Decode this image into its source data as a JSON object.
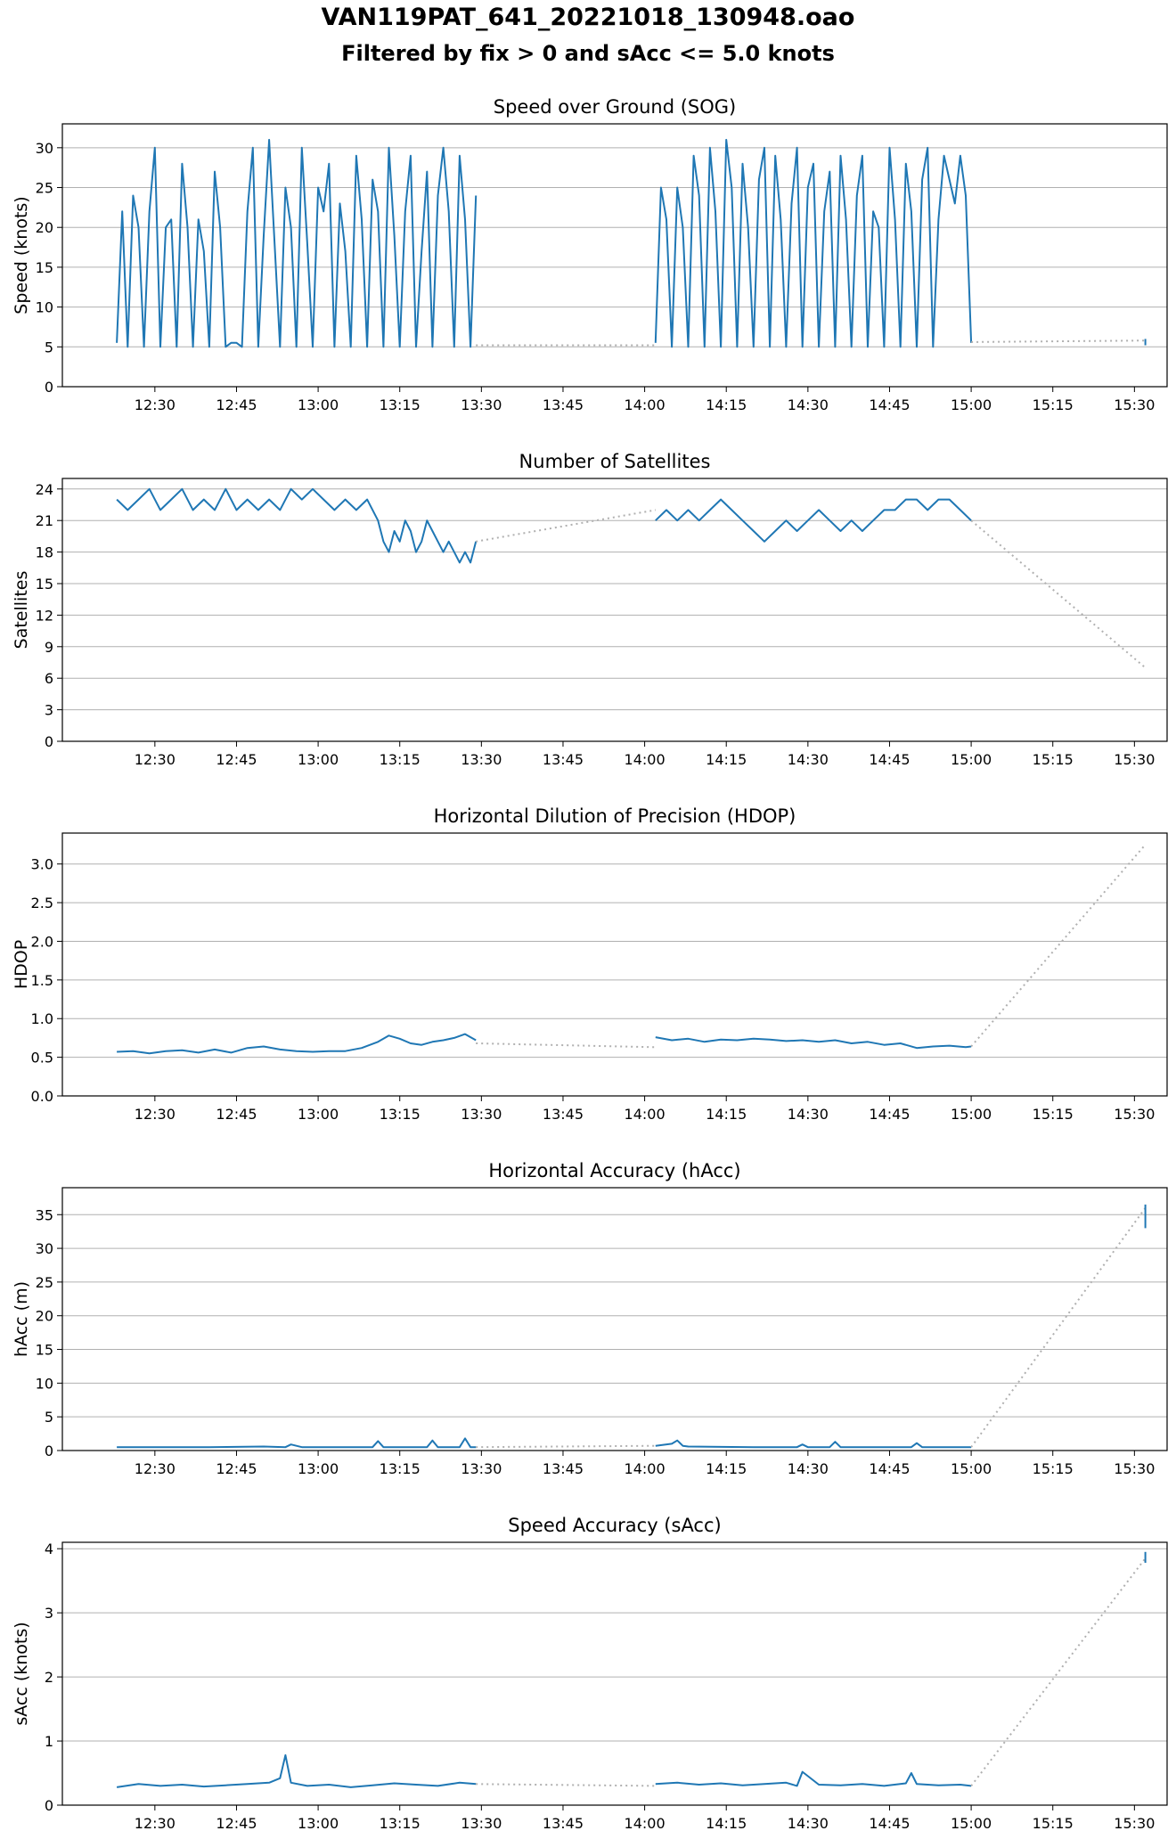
{
  "header": {
    "title": "VAN119PAT_641_20221018_130948.oao",
    "subtitle": "Filtered by fix > 0 and sAcc <= 5.0 knots"
  },
  "colors": {
    "series": "#1f77b4",
    "gap": "#b0b0b0",
    "grid": "#b0b0b0",
    "axis": "#000000"
  },
  "chart_data": [
    {
      "type": "line",
      "title": "Speed over Ground (SOG)",
      "ylabel": "Speed (knots)",
      "xlabel": "",
      "x_unit": "clock time (hh:mm)",
      "xlim": [
        "12:13",
        "15:36"
      ],
      "ylim": [
        0,
        33
      ],
      "x_ticks": [
        "12:30",
        "12:45",
        "13:00",
        "13:15",
        "13:30",
        "13:45",
        "14:00",
        "14:15",
        "14:30",
        "14:45",
        "15:00",
        "15:15",
        "15:30"
      ],
      "y_ticks": [
        "0",
        "5",
        "10",
        "15",
        "20",
        "25",
        "30"
      ],
      "grid": "y",
      "series": [
        {
          "style": "solid",
          "x": [
            "12:23",
            "12:24",
            "12:25",
            "12:26",
            "12:27",
            "12:28",
            "12:29",
            "12:30",
            "12:31",
            "12:32",
            "12:33",
            "12:34",
            "12:35",
            "12:36",
            "12:37",
            "12:38",
            "12:39",
            "12:40",
            "12:41",
            "12:42",
            "12:43",
            "12:44",
            "12:45",
            "12:46",
            "12:47",
            "12:48",
            "12:49",
            "12:50",
            "12:51",
            "12:52",
            "12:53",
            "12:54",
            "12:55",
            "12:56",
            "12:57",
            "12:58",
            "12:59",
            "13:00",
            "13:01",
            "13:02",
            "13:03",
            "13:04",
            "13:05",
            "13:06",
            "13:07",
            "13:08",
            "13:09",
            "13:10",
            "13:11",
            "13:12",
            "13:13",
            "13:14",
            "13:15",
            "13:16",
            "13:17",
            "13:18",
            "13:19",
            "13:20",
            "13:21",
            "13:22",
            "13:23",
            "13:24",
            "13:25",
            "13:26",
            "13:27",
            "13:28",
            "13:29"
          ],
          "y": [
            5.5,
            22,
            5,
            24,
            20,
            5,
            22,
            30,
            5,
            20,
            21,
            5,
            28,
            20,
            5,
            21,
            17,
            5,
            27,
            20,
            5,
            5.5,
            5.5,
            5,
            22,
            30,
            5,
            19,
            31,
            18,
            5,
            25,
            20,
            5,
            30,
            18,
            5,
            25,
            22,
            28,
            5,
            23,
            17,
            5,
            29,
            21,
            5,
            26,
            22,
            5,
            30,
            19,
            5,
            22,
            29,
            5,
            17,
            27,
            5,
            24,
            30,
            22,
            5,
            29,
            21,
            5,
            24
          ]
        },
        {
          "style": "dotted",
          "x": [
            "13:29",
            "14:02"
          ],
          "y": [
            5.2,
            5.2
          ]
        },
        {
          "style": "solid",
          "x": [
            "14:02",
            "14:03",
            "14:04",
            "14:05",
            "14:06",
            "14:07",
            "14:08",
            "14:09",
            "14:10",
            "14:11",
            "14:12",
            "14:13",
            "14:14",
            "14:15",
            "14:16",
            "14:17",
            "14:18",
            "14:19",
            "14:20",
            "14:21",
            "14:22",
            "14:23",
            "14:24",
            "14:25",
            "14:26",
            "14:27",
            "14:28",
            "14:29",
            "14:30",
            "14:31",
            "14:32",
            "14:33",
            "14:34",
            "14:35",
            "14:36",
            "14:37",
            "14:38",
            "14:39",
            "14:40",
            "14:41",
            "14:42",
            "14:43",
            "14:44",
            "14:45",
            "14:46",
            "14:47",
            "14:48",
            "14:49",
            "14:50",
            "14:51",
            "14:52",
            "14:53",
            "14:54",
            "14:55",
            "14:56",
            "14:57",
            "14:58",
            "14:59",
            "15:00"
          ],
          "y": [
            5.5,
            25,
            21,
            5,
            25,
            20,
            5,
            29,
            24,
            5,
            30,
            22,
            5,
            31,
            25,
            5,
            28,
            20,
            5,
            26,
            30,
            5,
            29,
            21,
            5,
            23,
            30,
            5,
            25,
            28,
            5,
            22,
            27,
            5,
            29,
            21,
            5,
            24,
            29,
            5,
            22,
            20,
            5,
            30,
            21,
            5,
            28,
            22,
            5,
            26,
            30,
            5,
            21,
            29,
            26,
            23,
            29,
            24,
            5.5
          ]
        },
        {
          "style": "dotted",
          "x": [
            "15:00",
            "15:32"
          ],
          "y": [
            5.6,
            5.8
          ]
        },
        {
          "style": "solid",
          "x": [
            "15:32",
            "15:32"
          ],
          "y": [
            5.2,
            6.0
          ]
        }
      ]
    },
    {
      "type": "line",
      "title": "Number of Satellites",
      "ylabel": "Satellites",
      "xlabel": "",
      "x_unit": "clock time (hh:mm)",
      "xlim": [
        "12:13",
        "15:36"
      ],
      "ylim": [
        0,
        25
      ],
      "x_ticks": [
        "12:30",
        "12:45",
        "13:00",
        "13:15",
        "13:30",
        "13:45",
        "14:00",
        "14:15",
        "14:30",
        "14:45",
        "15:00",
        "15:15",
        "15:30"
      ],
      "y_ticks": [
        "0",
        "3",
        "6",
        "9",
        "12",
        "15",
        "18",
        "21",
        "24"
      ],
      "grid": "y",
      "series": [
        {
          "style": "solid",
          "x": [
            "12:23",
            "12:25",
            "12:27",
            "12:29",
            "12:31",
            "12:33",
            "12:35",
            "12:37",
            "12:39",
            "12:41",
            "12:43",
            "12:45",
            "12:47",
            "12:49",
            "12:51",
            "12:53",
            "12:55",
            "12:57",
            "12:59",
            "13:01",
            "13:03",
            "13:05",
            "13:07",
            "13:09",
            "13:11",
            "13:12",
            "13:13",
            "13:14",
            "13:15",
            "13:16",
            "13:17",
            "13:18",
            "13:19",
            "13:20",
            "13:21",
            "13:22",
            "13:23",
            "13:24",
            "13:25",
            "13:26",
            "13:27",
            "13:28",
            "13:29"
          ],
          "y": [
            23,
            22,
            23,
            24,
            22,
            23,
            24,
            22,
            23,
            22,
            24,
            22,
            23,
            22,
            23,
            22,
            24,
            23,
            24,
            23,
            22,
            23,
            22,
            23,
            21,
            19,
            18,
            20,
            19,
            21,
            20,
            18,
            19,
            21,
            20,
            19,
            18,
            19,
            18,
            17,
            18,
            17,
            19
          ]
        },
        {
          "style": "dotted",
          "x": [
            "13:29",
            "14:02"
          ],
          "y": [
            19,
            22
          ]
        },
        {
          "style": "solid",
          "x": [
            "14:02",
            "14:04",
            "14:06",
            "14:08",
            "14:10",
            "14:12",
            "14:14",
            "14:16",
            "14:18",
            "14:20",
            "14:22",
            "14:24",
            "14:26",
            "14:28",
            "14:30",
            "14:32",
            "14:34",
            "14:36",
            "14:38",
            "14:40",
            "14:42",
            "14:44",
            "14:46",
            "14:48",
            "14:50",
            "14:52",
            "14:54",
            "14:56",
            "14:58",
            "15:00"
          ],
          "y": [
            21,
            22,
            21,
            22,
            21,
            22,
            23,
            22,
            21,
            20,
            19,
            20,
            21,
            20,
            21,
            22,
            21,
            20,
            21,
            20,
            21,
            22,
            22,
            23,
            23,
            22,
            23,
            23,
            22,
            21
          ]
        },
        {
          "style": "dotted",
          "x": [
            "15:00",
            "15:32"
          ],
          "y": [
            21,
            7
          ]
        }
      ]
    },
    {
      "type": "line",
      "title": "Horizontal Dilution of Precision (HDOP)",
      "ylabel": "HDOP",
      "xlabel": "",
      "x_unit": "clock time (hh:mm)",
      "xlim": [
        "12:13",
        "15:36"
      ],
      "ylim": [
        0,
        3.4
      ],
      "x_ticks": [
        "12:30",
        "12:45",
        "13:00",
        "13:15",
        "13:30",
        "13:45",
        "14:00",
        "14:15",
        "14:30",
        "14:45",
        "15:00",
        "15:15",
        "15:30"
      ],
      "y_ticks": [
        "0.0",
        "0.5",
        "1.0",
        "1.5",
        "2.0",
        "2.5",
        "3.0"
      ],
      "grid": "y",
      "series": [
        {
          "style": "solid",
          "x": [
            "12:23",
            "12:26",
            "12:29",
            "12:32",
            "12:35",
            "12:38",
            "12:41",
            "12:44",
            "12:47",
            "12:50",
            "12:53",
            "12:56",
            "12:59",
            "13:02",
            "13:05",
            "13:08",
            "13:11",
            "13:13",
            "13:15",
            "13:17",
            "13:19",
            "13:21",
            "13:23",
            "13:25",
            "13:27",
            "13:29"
          ],
          "y": [
            0.57,
            0.58,
            0.55,
            0.58,
            0.59,
            0.56,
            0.6,
            0.56,
            0.62,
            0.64,
            0.6,
            0.58,
            0.57,
            0.58,
            0.58,
            0.62,
            0.7,
            0.78,
            0.74,
            0.68,
            0.66,
            0.7,
            0.72,
            0.75,
            0.8,
            0.72
          ]
        },
        {
          "style": "dotted",
          "x": [
            "13:29",
            "14:02"
          ],
          "y": [
            0.68,
            0.63
          ]
        },
        {
          "style": "solid",
          "x": [
            "14:02",
            "14:05",
            "14:08",
            "14:11",
            "14:14",
            "14:17",
            "14:20",
            "14:23",
            "14:26",
            "14:29",
            "14:32",
            "14:35",
            "14:38",
            "14:41",
            "14:44",
            "14:47",
            "14:50",
            "14:53",
            "14:56",
            "14:59",
            "15:00"
          ],
          "y": [
            0.76,
            0.72,
            0.74,
            0.7,
            0.73,
            0.72,
            0.74,
            0.73,
            0.71,
            0.72,
            0.7,
            0.72,
            0.68,
            0.7,
            0.66,
            0.68,
            0.62,
            0.64,
            0.65,
            0.63,
            0.64
          ]
        },
        {
          "style": "dotted",
          "x": [
            "15:00",
            "15:32"
          ],
          "y": [
            0.64,
            3.25
          ]
        }
      ]
    },
    {
      "type": "line",
      "title": "Horizontal Accuracy (hAcc)",
      "ylabel": "hAcc (m)",
      "xlabel": "",
      "x_unit": "clock time (hh:mm)",
      "xlim": [
        "12:13",
        "15:36"
      ],
      "ylim": [
        0,
        39
      ],
      "x_ticks": [
        "12:30",
        "12:45",
        "13:00",
        "13:15",
        "13:30",
        "13:45",
        "14:00",
        "14:15",
        "14:30",
        "14:45",
        "15:00",
        "15:15",
        "15:30"
      ],
      "y_ticks": [
        "0",
        "5",
        "10",
        "15",
        "20",
        "25",
        "30",
        "35"
      ],
      "grid": "y",
      "series": [
        {
          "style": "solid",
          "x": [
            "12:23",
            "12:30",
            "12:40",
            "12:50",
            "12:54",
            "12:55",
            "12:57",
            "13:05",
            "13:10",
            "13:11",
            "13:12",
            "13:20",
            "13:21",
            "13:22",
            "13:26",
            "13:27",
            "13:28",
            "13:29"
          ],
          "y": [
            0.5,
            0.5,
            0.5,
            0.6,
            0.5,
            0.9,
            0.5,
            0.5,
            0.5,
            1.4,
            0.5,
            0.5,
            1.5,
            0.5,
            0.5,
            1.8,
            0.5,
            0.5
          ]
        },
        {
          "style": "dotted",
          "x": [
            "13:29",
            "14:02"
          ],
          "y": [
            0.5,
            0.7
          ]
        },
        {
          "style": "solid",
          "x": [
            "14:02",
            "14:05",
            "14:06",
            "14:07",
            "14:08",
            "14:20",
            "14:28",
            "14:29",
            "14:30",
            "14:34",
            "14:35",
            "14:36",
            "14:45",
            "14:49",
            "14:50",
            "14:51",
            "15:00"
          ],
          "y": [
            0.7,
            1.0,
            1.5,
            0.7,
            0.6,
            0.5,
            0.5,
            0.9,
            0.5,
            0.5,
            1.3,
            0.5,
            0.5,
            0.5,
            1.1,
            0.5,
            0.5
          ]
        },
        {
          "style": "dotted",
          "x": [
            "15:00",
            "15:32"
          ],
          "y": [
            0.5,
            36
          ]
        },
        {
          "style": "solid",
          "x": [
            "15:32",
            "15:32"
          ],
          "y": [
            33,
            36.5
          ]
        }
      ]
    },
    {
      "type": "line",
      "title": "Speed Accuracy (sAcc)",
      "ylabel": "sAcc (knots)",
      "xlabel": "",
      "x_unit": "clock time (hh:mm)",
      "xlim": [
        "12:13",
        "15:36"
      ],
      "ylim": [
        0,
        4.1
      ],
      "x_ticks": [
        "12:30",
        "12:45",
        "13:00",
        "13:15",
        "13:30",
        "13:45",
        "14:00",
        "14:15",
        "14:30",
        "14:45",
        "15:00",
        "15:15",
        "15:30"
      ],
      "y_ticks": [
        "0",
        "1",
        "2",
        "3",
        "4"
      ],
      "grid": "y",
      "series": [
        {
          "style": "solid",
          "x": [
            "12:23",
            "12:27",
            "12:31",
            "12:35",
            "12:39",
            "12:43",
            "12:47",
            "12:51",
            "12:53",
            "12:54",
            "12:55",
            "12:58",
            "13:02",
            "13:06",
            "13:10",
            "13:14",
            "13:18",
            "13:22",
            "13:26",
            "13:29"
          ],
          "y": [
            0.28,
            0.33,
            0.3,
            0.32,
            0.29,
            0.31,
            0.33,
            0.35,
            0.42,
            0.78,
            0.35,
            0.3,
            0.32,
            0.28,
            0.31,
            0.34,
            0.32,
            0.3,
            0.35,
            0.33
          ]
        },
        {
          "style": "dotted",
          "x": [
            "13:29",
            "14:02"
          ],
          "y": [
            0.33,
            0.3
          ]
        },
        {
          "style": "solid",
          "x": [
            "14:02",
            "14:06",
            "14:10",
            "14:14",
            "14:18",
            "14:22",
            "14:26",
            "14:28",
            "14:29",
            "14:32",
            "14:36",
            "14:40",
            "14:44",
            "14:48",
            "14:49",
            "14:50",
            "14:54",
            "14:58",
            "15:00"
          ],
          "y": [
            0.33,
            0.35,
            0.32,
            0.34,
            0.31,
            0.33,
            0.35,
            0.3,
            0.52,
            0.32,
            0.31,
            0.33,
            0.3,
            0.34,
            0.5,
            0.33,
            0.31,
            0.32,
            0.3
          ]
        },
        {
          "style": "dotted",
          "x": [
            "15:00",
            "15:32"
          ],
          "y": [
            0.3,
            3.85
          ]
        },
        {
          "style": "solid",
          "x": [
            "15:32",
            "15:32"
          ],
          "y": [
            3.78,
            3.95
          ]
        }
      ]
    }
  ]
}
